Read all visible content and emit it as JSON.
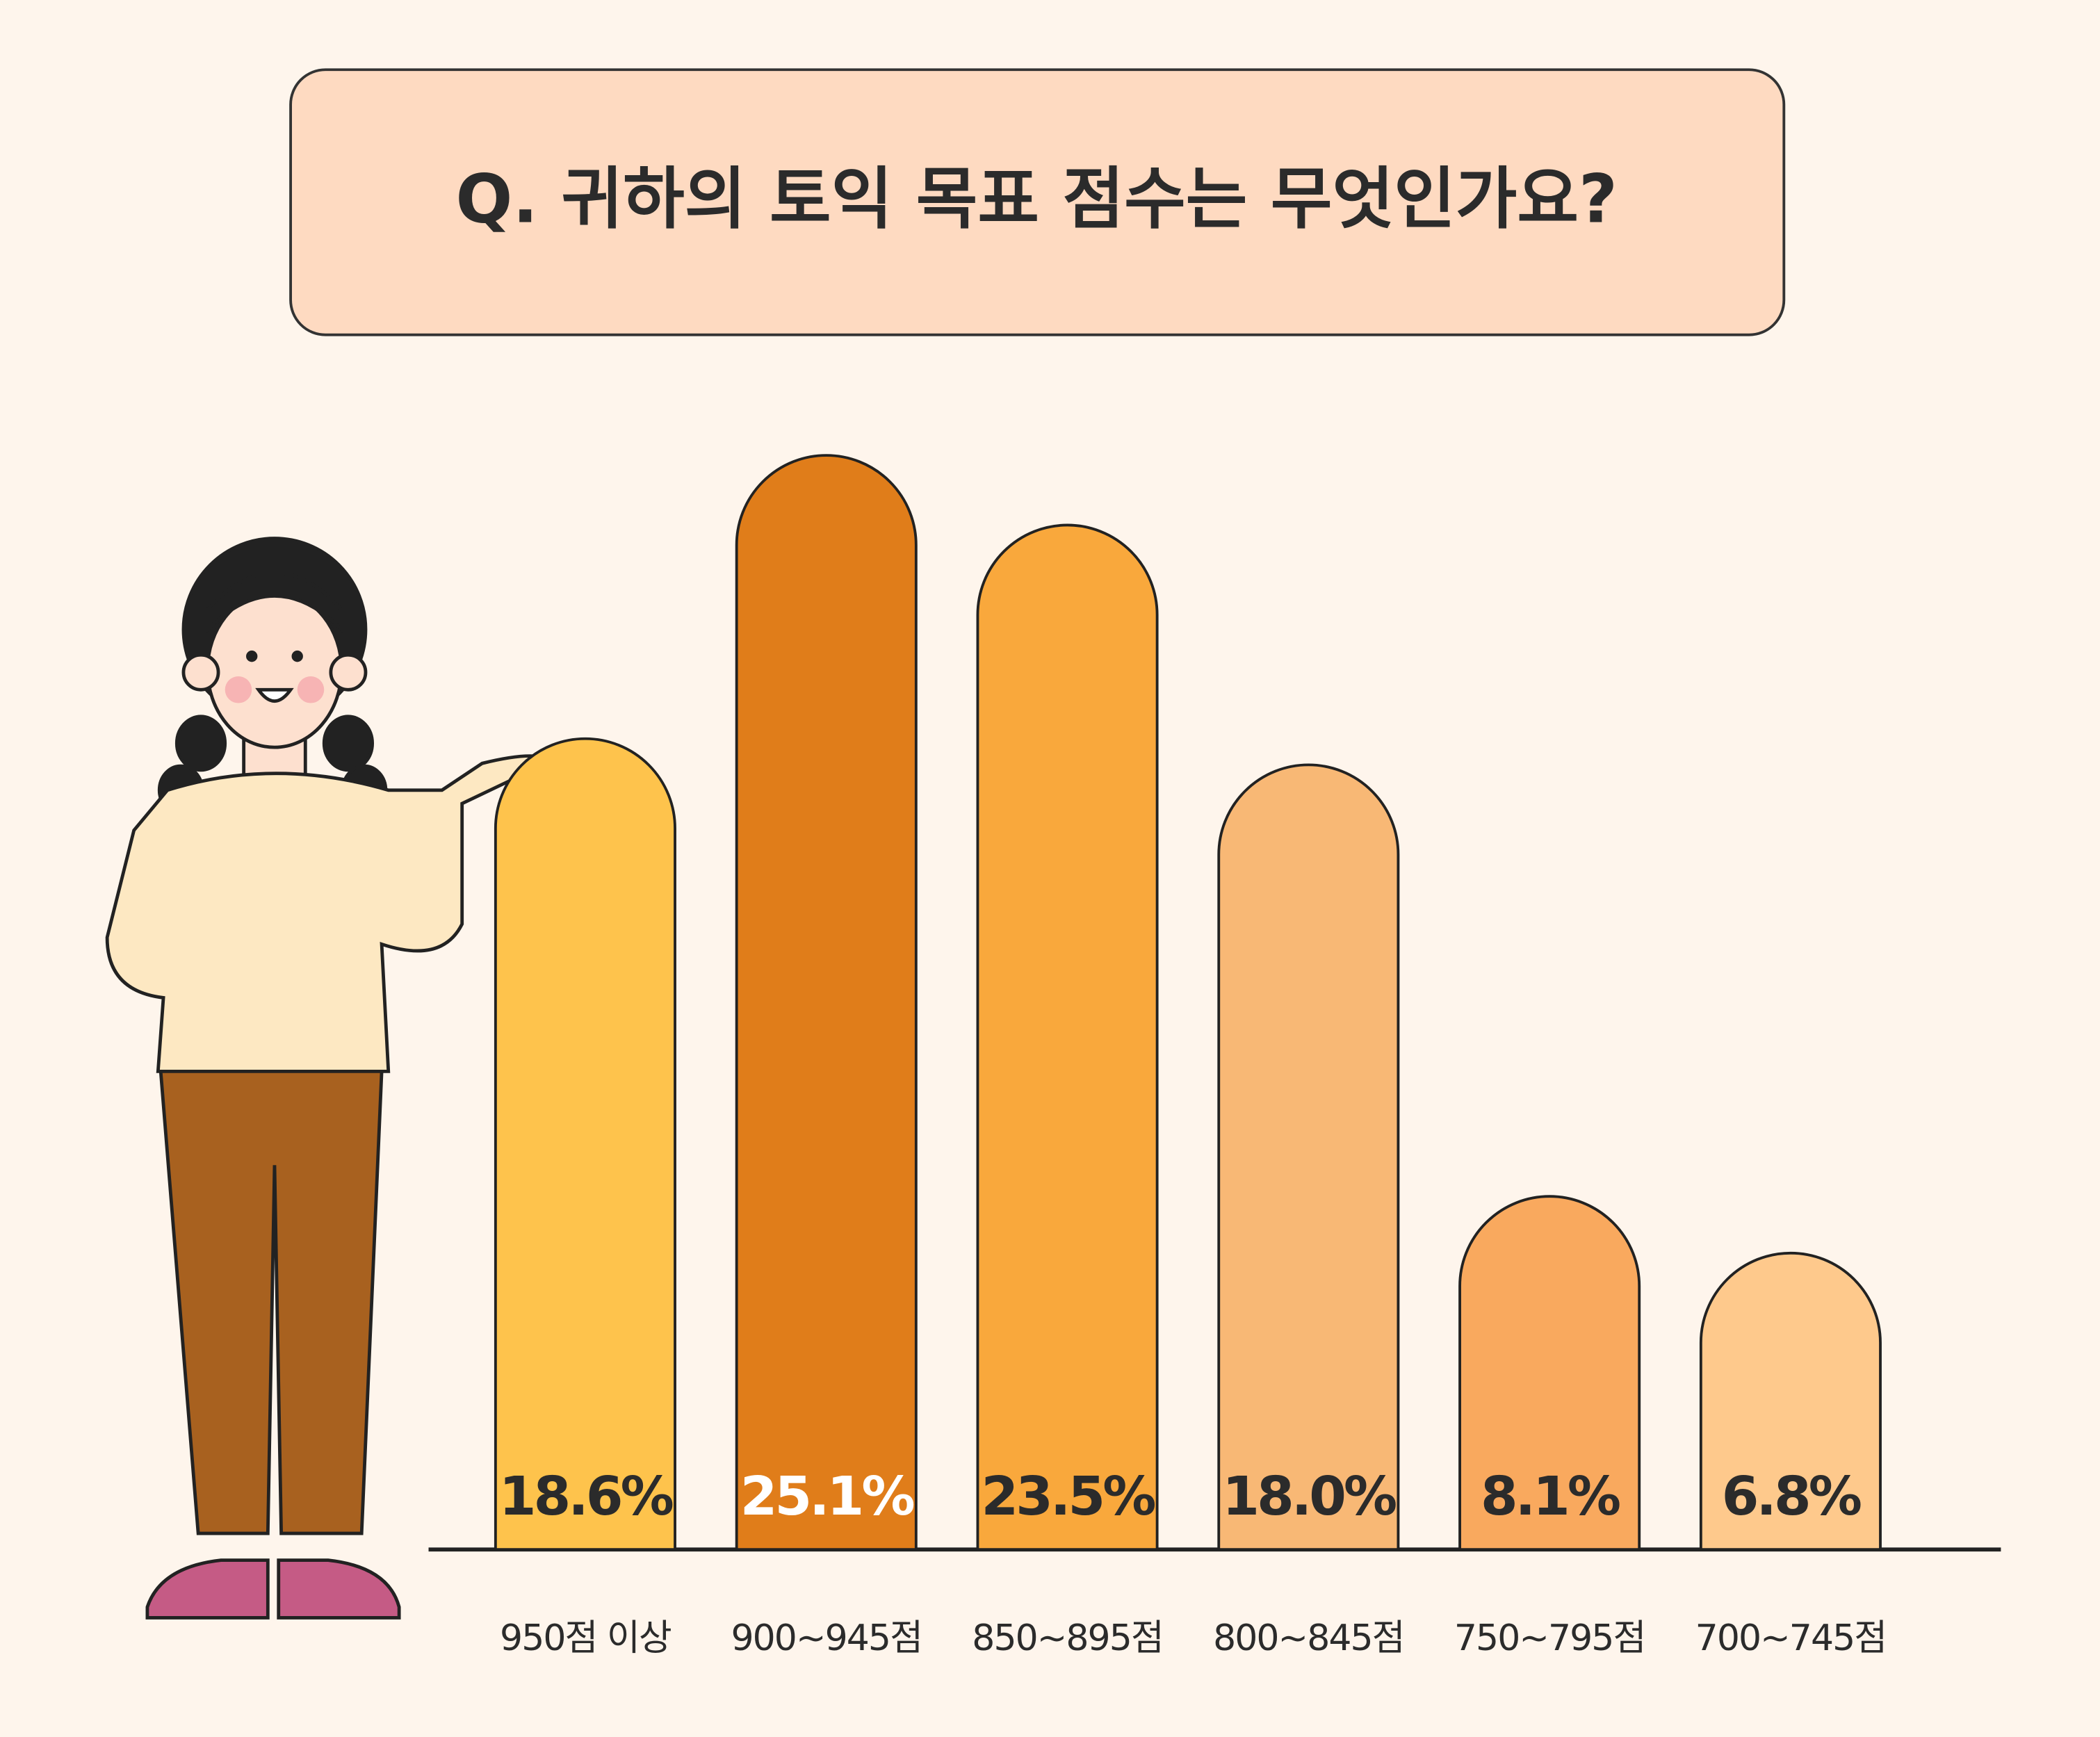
{
  "chart_data": {
    "type": "bar",
    "title": "Q. 귀하의 토익 목표 점수는 무엇인가요?",
    "categories": [
      "950점 이상",
      "900~945점",
      "850~895점",
      "800~845점",
      "750~795점",
      "700~745점"
    ],
    "values": [
      18.6,
      25.1,
      23.5,
      18.0,
      8.1,
      6.8
    ],
    "value_labels": [
      "18.6%",
      "25.1%",
      "23.5%",
      "18.0%",
      "8.1%",
      "6.8%"
    ],
    "colors": [
      "#fec34c",
      "#e07d1a",
      "#f9a83c",
      "#f8b875",
      "#f9a95e",
      "#fec98c"
    ]
  }
}
